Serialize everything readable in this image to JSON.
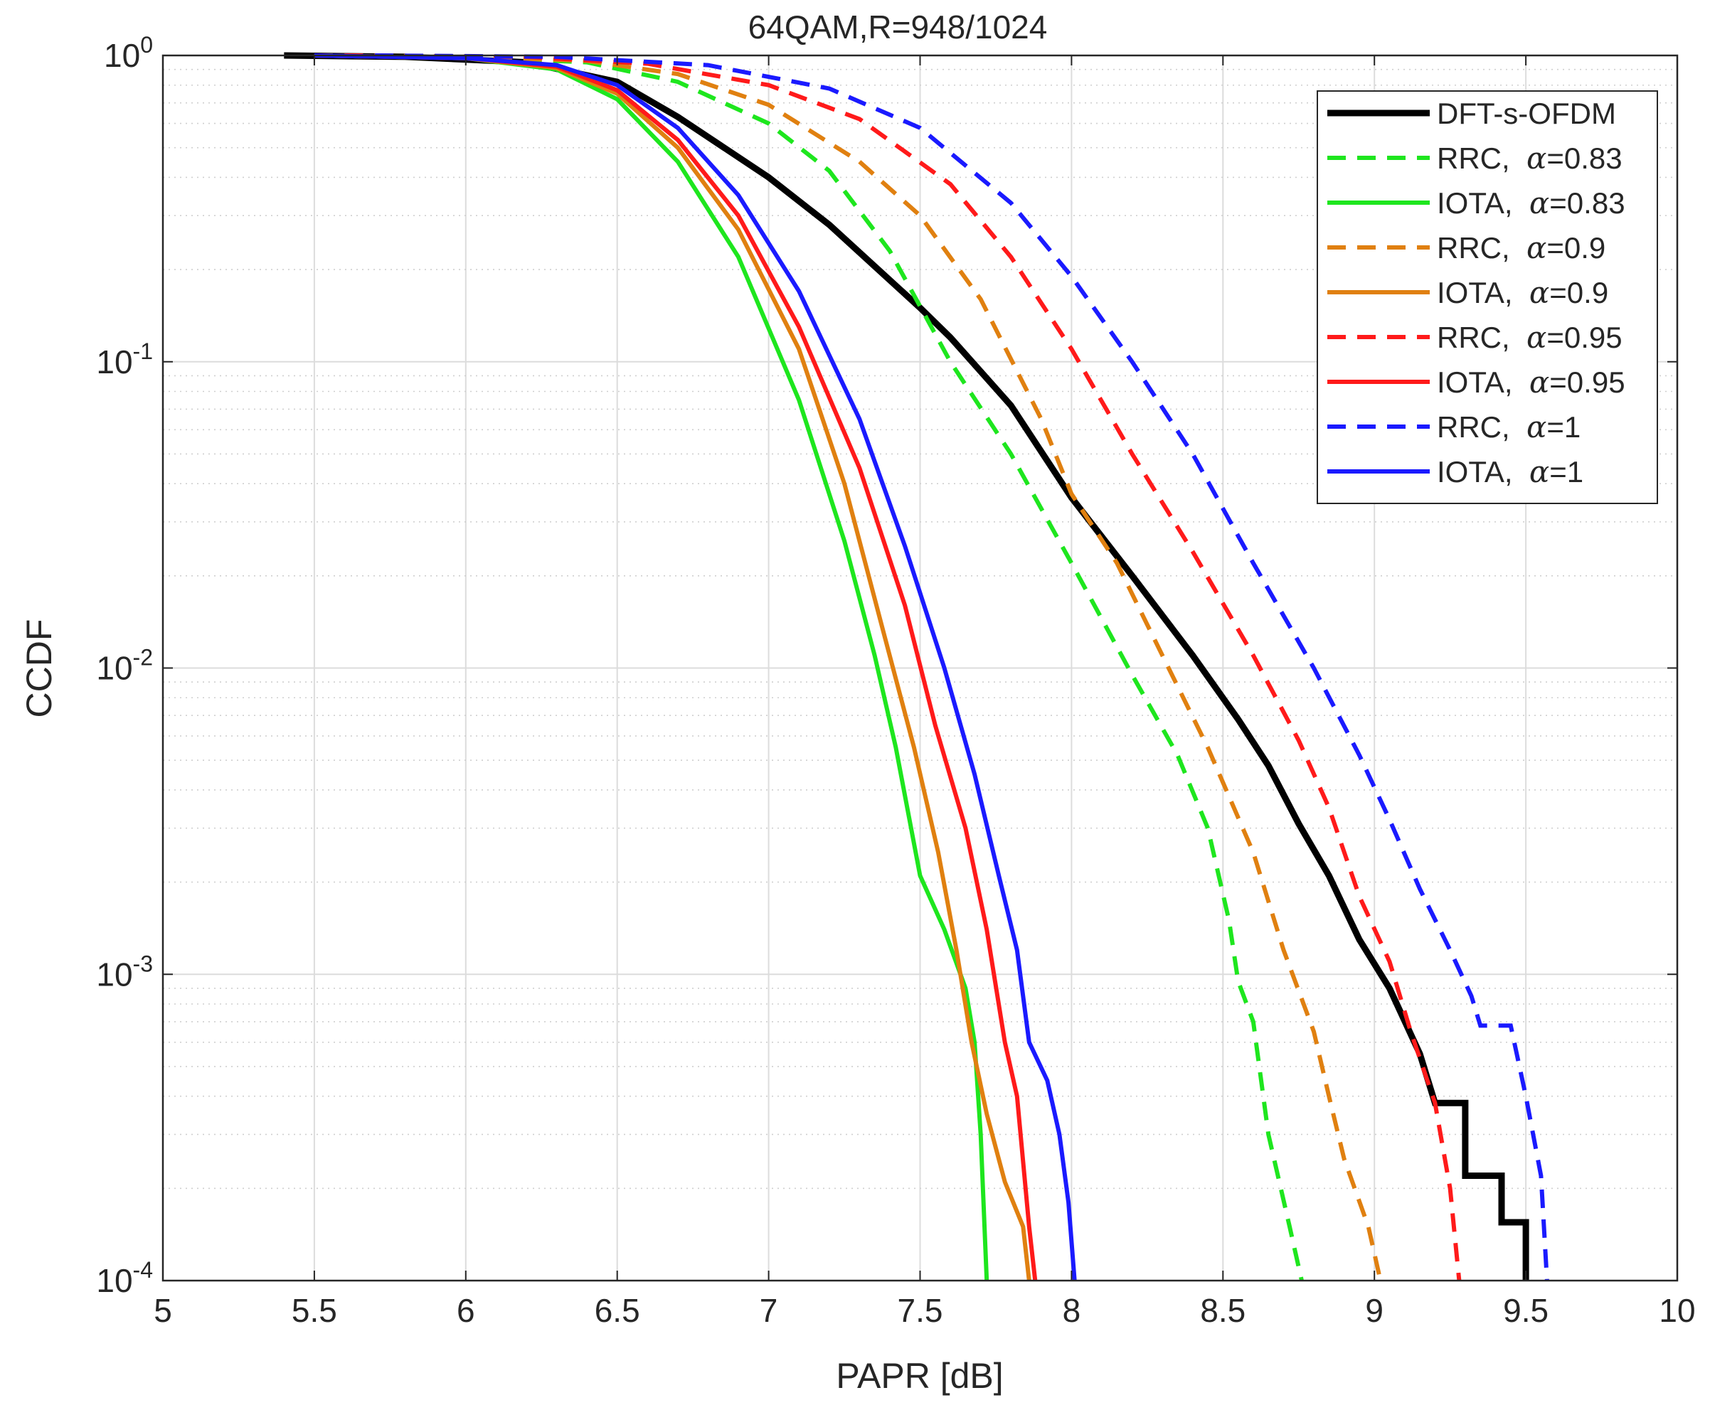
{
  "chart_data": {
    "type": "line",
    "title": "64QAM,R=948/1024",
    "xlabel": "PAPR [dB]",
    "ylabel": "CCDF",
    "xlim": [
      5,
      10
    ],
    "ylim": [
      0.0001,
      1
    ],
    "yscale": "log",
    "grid": true,
    "minor_grid": true,
    "legend_position": "top-right",
    "x_ticks": [
      5,
      5.5,
      6,
      6.5,
      7,
      7.5,
      8,
      8.5,
      9,
      9.5,
      10
    ],
    "x_tick_labels": [
      "5",
      "5.5",
      "6",
      "6.5",
      "7",
      "7.5",
      "8",
      "8.5",
      "9",
      "9.5",
      "10"
    ],
    "y_ticks": [
      {
        "value": 1,
        "base": "10",
        "exp": "0"
      },
      {
        "value": 0.1,
        "base": "10",
        "exp": "-1"
      },
      {
        "value": 0.01,
        "base": "10",
        "exp": "-2"
      },
      {
        "value": 0.001,
        "base": "10",
        "exp": "-3"
      },
      {
        "value": 0.0001,
        "base": "10",
        "exp": "-4"
      }
    ],
    "series": [
      {
        "name": "DFT-s-OFDM",
        "color": "#000000",
        "style": "solid",
        "weight": "heavy",
        "points": [
          [
            5.4,
            1
          ],
          [
            5.8,
            0.99
          ],
          [
            6.2,
            0.95
          ],
          [
            6.5,
            0.82
          ],
          [
            6.7,
            0.63
          ],
          [
            7,
            0.4
          ],
          [
            7.2,
            0.28
          ],
          [
            7.5,
            0.15
          ],
          [
            7.6,
            0.12
          ],
          [
            7.8,
            0.072
          ],
          [
            8,
            0.036
          ],
          [
            8.2,
            0.02
          ],
          [
            8.4,
            0.011
          ],
          [
            8.55,
            0.0068
          ],
          [
            8.65,
            0.0048
          ],
          [
            8.75,
            0.0031
          ],
          [
            8.85,
            0.0021
          ],
          [
            8.95,
            0.0013
          ],
          [
            9.05,
            0.0009
          ],
          [
            9.15,
            0.00055
          ],
          [
            9.2,
            0.00038
          ],
          [
            9.3,
            0.00038
          ],
          [
            9.3,
            0.00022
          ],
          [
            9.42,
            0.00022
          ],
          [
            9.42,
            0.000155
          ],
          [
            9.5,
            0.000155
          ],
          [
            9.5,
            0.0001
          ]
        ]
      },
      {
        "name": "RRC,  α=0.83",
        "label_text": "RRC,",
        "alpha_value": "=0.83",
        "color": "#1ee61e",
        "style": "dashed",
        "weight": "normal",
        "points": [
          [
            5.5,
            1
          ],
          [
            6,
            0.99
          ],
          [
            6.4,
            0.95
          ],
          [
            6.7,
            0.82
          ],
          [
            7,
            0.6
          ],
          [
            7.2,
            0.42
          ],
          [
            7.4,
            0.23
          ],
          [
            7.6,
            0.1
          ],
          [
            7.8,
            0.05
          ],
          [
            8,
            0.022
          ],
          [
            8.2,
            0.0095
          ],
          [
            8.35,
            0.0052
          ],
          [
            8.45,
            0.003
          ],
          [
            8.52,
            0.0015
          ],
          [
            8.55,
            0.00095
          ],
          [
            8.6,
            0.0007
          ],
          [
            8.65,
            0.0003
          ],
          [
            8.72,
            0.00015
          ],
          [
            8.76,
            0.0001
          ]
        ]
      },
      {
        "name": "IOTA,  α=0.83",
        "label_text": "IOTA,",
        "alpha_value": "=0.83",
        "color": "#1ee61e",
        "style": "solid",
        "weight": "normal",
        "points": [
          [
            5.5,
            1
          ],
          [
            6,
            0.98
          ],
          [
            6.3,
            0.9
          ],
          [
            6.5,
            0.72
          ],
          [
            6.7,
            0.45
          ],
          [
            6.9,
            0.22
          ],
          [
            7.1,
            0.075
          ],
          [
            7.25,
            0.026
          ],
          [
            7.35,
            0.011
          ],
          [
            7.42,
            0.0055
          ],
          [
            7.5,
            0.0021
          ],
          [
            7.58,
            0.0014
          ],
          [
            7.65,
            0.0009
          ],
          [
            7.68,
            0.0006
          ],
          [
            7.7,
            0.0003
          ],
          [
            7.72,
            0.0001
          ]
        ]
      },
      {
        "name": "RRC,  α=0.9",
        "label_text": "RRC,",
        "alpha_value": "=0.9",
        "color": "#e08010",
        "style": "dashed",
        "weight": "normal",
        "points": [
          [
            5.5,
            1
          ],
          [
            6,
            0.99
          ],
          [
            6.4,
            0.96
          ],
          [
            6.7,
            0.87
          ],
          [
            7,
            0.69
          ],
          [
            7.3,
            0.45
          ],
          [
            7.5,
            0.3
          ],
          [
            7.7,
            0.16
          ],
          [
            7.9,
            0.065
          ],
          [
            8,
            0.037
          ],
          [
            8.15,
            0.022
          ],
          [
            8.3,
            0.011
          ],
          [
            8.45,
            0.0055
          ],
          [
            8.6,
            0.0025
          ],
          [
            8.7,
            0.0012
          ],
          [
            8.8,
            0.00065
          ],
          [
            8.85,
            0.0004
          ],
          [
            8.9,
            0.00025
          ],
          [
            8.98,
            0.00015
          ],
          [
            9.02,
            0.0001
          ]
        ]
      },
      {
        "name": "IOTA,  α=0.9",
        "label_text": "IOTA,",
        "alpha_value": "=0.9",
        "color": "#e08010",
        "style": "solid",
        "weight": "normal",
        "points": [
          [
            5.5,
            1
          ],
          [
            6,
            0.98
          ],
          [
            6.3,
            0.91
          ],
          [
            6.5,
            0.75
          ],
          [
            6.7,
            0.5
          ],
          [
            6.9,
            0.27
          ],
          [
            7.1,
            0.11
          ],
          [
            7.25,
            0.04
          ],
          [
            7.38,
            0.013
          ],
          [
            7.48,
            0.0055
          ],
          [
            7.56,
            0.0025
          ],
          [
            7.62,
            0.0012
          ],
          [
            7.67,
            0.0006
          ],
          [
            7.72,
            0.00035
          ],
          [
            7.78,
            0.00021
          ],
          [
            7.84,
            0.00015
          ],
          [
            7.86,
            0.0001
          ]
        ]
      },
      {
        "name": "RRC,  α=0.95",
        "label_text": "RRC,",
        "alpha_value": "=0.95",
        "color": "#ff1a1a",
        "style": "dashed",
        "weight": "normal",
        "points": [
          [
            5.6,
            1
          ],
          [
            6.2,
            0.99
          ],
          [
            6.6,
            0.94
          ],
          [
            7,
            0.8
          ],
          [
            7.3,
            0.62
          ],
          [
            7.6,
            0.38
          ],
          [
            7.8,
            0.22
          ],
          [
            8,
            0.11
          ],
          [
            8.2,
            0.05
          ],
          [
            8.4,
            0.024
          ],
          [
            8.6,
            0.011
          ],
          [
            8.75,
            0.0058
          ],
          [
            8.85,
            0.0035
          ],
          [
            8.95,
            0.0018
          ],
          [
            9.05,
            0.0011
          ],
          [
            9.12,
            0.00065
          ],
          [
            9.2,
            0.00038
          ],
          [
            9.25,
            0.0002
          ],
          [
            9.28,
            0.0001
          ]
        ]
      },
      {
        "name": "IOTA,  α=0.95",
        "label_text": "IOTA,",
        "alpha_value": "=0.95",
        "color": "#ff1a1a",
        "style": "solid",
        "weight": "normal",
        "points": [
          [
            5.5,
            1
          ],
          [
            6,
            0.98
          ],
          [
            6.3,
            0.92
          ],
          [
            6.5,
            0.77
          ],
          [
            6.7,
            0.53
          ],
          [
            6.9,
            0.3
          ],
          [
            7.1,
            0.13
          ],
          [
            7.3,
            0.045
          ],
          [
            7.45,
            0.016
          ],
          [
            7.55,
            0.0065
          ],
          [
            7.65,
            0.003
          ],
          [
            7.72,
            0.0014
          ],
          [
            7.78,
            0.0006
          ],
          [
            7.82,
            0.0004
          ],
          [
            7.86,
            0.00015
          ],
          [
            7.88,
            0.0001
          ]
        ]
      },
      {
        "name": "RRC,  α=1",
        "label_text": "RRC,",
        "alpha_value": "=1",
        "color": "#1a1aff",
        "style": "dashed",
        "weight": "normal",
        "points": [
          [
            5.7,
            1
          ],
          [
            6.3,
            0.99
          ],
          [
            6.8,
            0.93
          ],
          [
            7.2,
            0.78
          ],
          [
            7.5,
            0.58
          ],
          [
            7.8,
            0.33
          ],
          [
            8,
            0.19
          ],
          [
            8.2,
            0.1
          ],
          [
            8.4,
            0.05
          ],
          [
            8.6,
            0.022
          ],
          [
            8.8,
            0.01
          ],
          [
            8.95,
            0.0052
          ],
          [
            9.05,
            0.0032
          ],
          [
            9.15,
            0.0019
          ],
          [
            9.25,
            0.0012
          ],
          [
            9.32,
            0.00085
          ],
          [
            9.35,
            0.00068
          ],
          [
            9.45,
            0.00068
          ],
          [
            9.5,
            0.0004
          ],
          [
            9.55,
            0.00022
          ],
          [
            9.57,
            0.0001
          ]
        ]
      },
      {
        "name": "IOTA,  α=1",
        "label_text": "IOTA,",
        "alpha_value": "=1",
        "color": "#1a1aff",
        "style": "solid",
        "weight": "normal",
        "points": [
          [
            5.5,
            1
          ],
          [
            6,
            0.98
          ],
          [
            6.3,
            0.93
          ],
          [
            6.5,
            0.8
          ],
          [
            6.7,
            0.58
          ],
          [
            6.9,
            0.35
          ],
          [
            7.1,
            0.17
          ],
          [
            7.3,
            0.065
          ],
          [
            7.45,
            0.025
          ],
          [
            7.58,
            0.01
          ],
          [
            7.68,
            0.0045
          ],
          [
            7.76,
            0.0021
          ],
          [
            7.82,
            0.0012
          ],
          [
            7.86,
            0.0006
          ],
          [
            7.92,
            0.00045
          ],
          [
            7.96,
            0.0003
          ],
          [
            7.99,
            0.00018
          ],
          [
            8.01,
            0.0001
          ]
        ]
      }
    ]
  }
}
